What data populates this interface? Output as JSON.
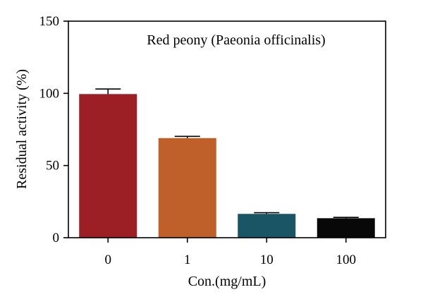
{
  "chart_data": {
    "type": "bar",
    "title": "Red peony (Paeonia officinalis)",
    "xlabel": "Con.(mg/mL)",
    "ylabel": "Residual activity (%)",
    "categories": [
      "0",
      "1",
      "10",
      "100"
    ],
    "values": [
      99.5,
      69,
      16.5,
      13.5
    ],
    "errors": [
      3.5,
      1.2,
      0.8,
      0.6
    ],
    "colors": [
      "#9b1f24",
      "#bf5f2a",
      "#1a5565",
      "#080808"
    ],
    "ylim": [
      0,
      150
    ],
    "yticks": [
      "0",
      "50",
      "100",
      "150"
    ],
    "grid": false,
    "legend": "none"
  }
}
